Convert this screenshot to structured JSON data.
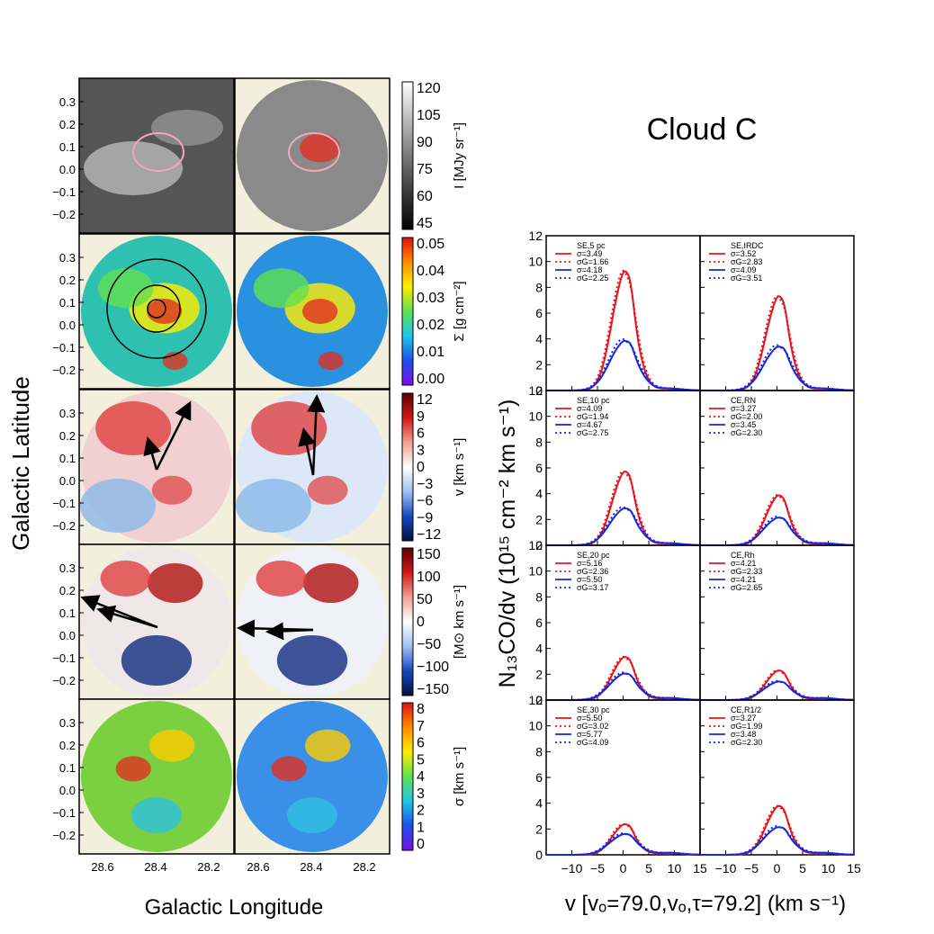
{
  "title": "Cloud C",
  "maps": {
    "xlabel": "Galactic Longitude",
    "ylabel": "Galactic Latitude",
    "x_ticks": [
      "28.6",
      "28.4",
      "28.2"
    ],
    "y_ticks": [
      "0.3",
      "0.2",
      "0.1",
      "0.0",
      "−0.1",
      "−0.2"
    ],
    "panel_background": "#f2f0dc",
    "rows": [
      {
        "name": "intensity",
        "colorbar_label": "I [MJy sr⁻¹]",
        "colorbar_ticks": [
          "120",
          "105",
          "90",
          "75",
          "60",
          "45"
        ],
        "colormap": "gray"
      },
      {
        "name": "surface-density",
        "colorbar_label": "Σ [g cm⁻²]",
        "colorbar_ticks": [
          "0.05",
          "0.04",
          "0.03",
          "0.02",
          "0.01",
          "0.00"
        ],
        "colormap": "rainbow"
      },
      {
        "name": "velocity",
        "colorbar_label": "v [km s⁻¹]",
        "colorbar_ticks": [
          "12",
          "9",
          "6",
          "3",
          "0",
          "−3",
          "−6",
          "−9",
          "−12"
        ],
        "colormap": "diverging"
      },
      {
        "name": "momentum",
        "colorbar_label": "[M⊙ km s⁻¹]",
        "colorbar_ticks": [
          "150",
          "100",
          "50",
          "0",
          "−50",
          "−100",
          "−150"
        ],
        "colormap": "diverging"
      },
      {
        "name": "dispersion",
        "colorbar_label": "σ [km s⁻¹]",
        "colorbar_ticks": [
          "8",
          "7",
          "6",
          "5",
          "4",
          "3",
          "2",
          "1",
          "0"
        ],
        "colormap": "rainbow"
      }
    ]
  },
  "chart_data": {
    "type": "line",
    "xlabel": "v [vₒ=79.0,vₒ,τ=79.2] (km s⁻¹)",
    "ylabel": "N₁₃CO/dv (10¹⁵ cm⁻² km s⁻¹)",
    "xlim": [
      -15,
      15
    ],
    "ylim": [
      0,
      12
    ],
    "x_ticks": [
      "−10",
      "−5",
      "0",
      "5",
      "10",
      "15"
    ],
    "y_ticks": [
      "0",
      "2",
      "4",
      "6",
      "8",
      "10",
      "12"
    ],
    "colors": {
      "red": "#e8141c",
      "blue": "#1428e0"
    },
    "panels": [
      {
        "label": "SE,5 pc",
        "legend": [
          "σ=3.49",
          "σG=1.66",
          "σ=4.18",
          "σG=2.25"
        ],
        "red_peak": 10.5,
        "blue_peak": 4.3
      },
      {
        "label": "SE,IRDC",
        "legend": [
          "σ=3.52",
          "σG=2.83",
          "σ=4.09",
          "σG=3.51"
        ],
        "red_peak": 8.3,
        "blue_peak": 3.8
      },
      {
        "label": "SE,10 pc",
        "legend": [
          "σ=4.09",
          "σG=1.94",
          "σ=4.67",
          "σG=2.75"
        ],
        "red_peak": 6.5,
        "blue_peak": 3.2
      },
      {
        "label": "CE,RN",
        "legend": [
          "σ=3.27",
          "σG=2.00",
          "σ=3.45",
          "σG=2.30"
        ],
        "red_peak": 4.4,
        "blue_peak": 2.4
      },
      {
        "label": "SE,20 pc",
        "legend": [
          "σ=5.16",
          "σG=2.36",
          "σ=5.50",
          "σG=3.17"
        ],
        "red_peak": 3.8,
        "blue_peak": 2.3
      },
      {
        "label": "CE,Rh",
        "legend": [
          "σ=4.21",
          "σG=2.33",
          "σ=4.21",
          "σG=2.65"
        ],
        "red_peak": 2.6,
        "blue_peak": 1.6
      },
      {
        "label": "SE,30 pc",
        "legend": [
          "σ=5.50",
          "σG=3.02",
          "σ=5.77",
          "σG=4.09"
        ],
        "red_peak": 2.7,
        "blue_peak": 1.8
      },
      {
        "label": "CE,R1/2",
        "legend": [
          "σ=3.27",
          "σG=1.99",
          "σ=3.48",
          "σG=2.30"
        ],
        "red_peak": 4.3,
        "blue_peak": 2.4
      }
    ]
  }
}
